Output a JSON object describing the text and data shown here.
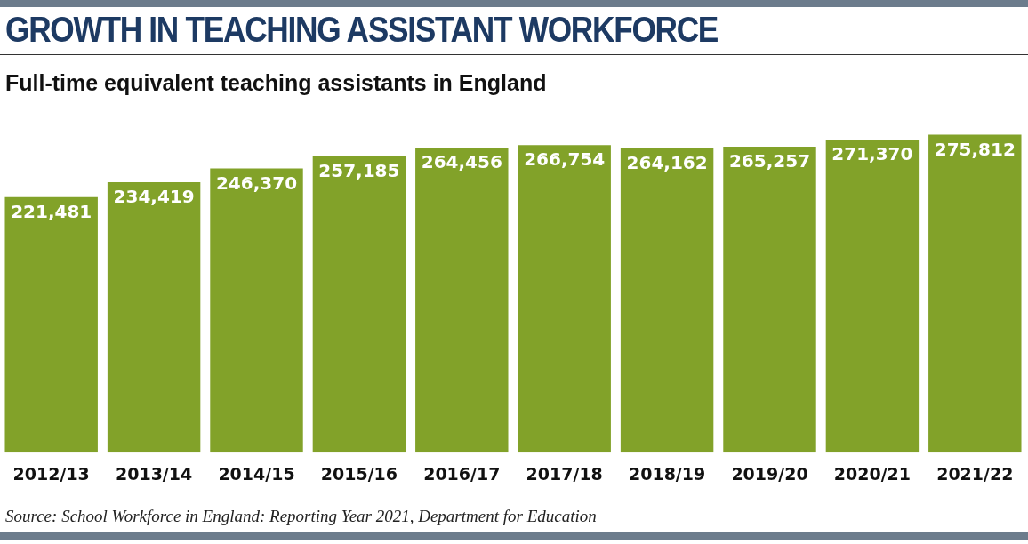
{
  "chart_data": {
    "type": "bar",
    "title": "GROWTH IN TEACHING ASSISTANT WORKFORCE",
    "subtitle": "Full-time equivalent teaching assistants in England",
    "categories": [
      "2012/13",
      "2013/14",
      "2014/15",
      "2015/16",
      "2016/17",
      "2017/18",
      "2018/19",
      "2019/20",
      "2020/21",
      "2021/22"
    ],
    "values": [
      221481,
      234419,
      246370,
      257185,
      264456,
      266754,
      264162,
      265257,
      271370,
      275812
    ],
    "value_labels": [
      "221,481",
      "234,419",
      "246,370",
      "257,185",
      "264,456",
      "266,754",
      "264,162",
      "265,257",
      "271,370",
      "275,812"
    ],
    "color": "#82a229",
    "grid": false,
    "legend": false,
    "tick_labels": "x",
    "annotations": [
      "Source: School Workforce in England: Reporting Year 2021, Department for Education"
    ]
  }
}
